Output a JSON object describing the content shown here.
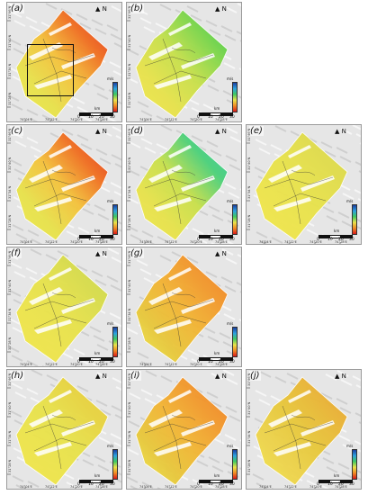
{
  "figure": {
    "panels": [
      {
        "id": "a",
        "label": "(a)",
        "colors": [
          "#e03020",
          "#f06b1e",
          "#f4c23a",
          "#e8e24a",
          "#f0e84a"
        ],
        "has_inset_box": true
      },
      {
        "id": "b",
        "label": "(b)",
        "colors": [
          "#2ec84a",
          "#7ad64a",
          "#c8e04a",
          "#e8e24a",
          "#f0e84a"
        ],
        "has_inset_box": false
      },
      {
        "id": "c",
        "label": "(c)",
        "colors": [
          "#e03020",
          "#f06b1e",
          "#f4c23a",
          "#e8e24a",
          "#f0e84a"
        ],
        "has_inset_box": false
      },
      {
        "id": "d",
        "label": "(d)",
        "colors": [
          "#2ec8a0",
          "#4ad07a",
          "#c8e04a",
          "#e8e24a",
          "#f0e84a"
        ],
        "has_inset_box": false
      },
      {
        "id": "e",
        "label": "(e)",
        "colors": [
          "#d8d84a",
          "#e0dc4a",
          "#e8e24a",
          "#eee44a",
          "#f0e84a"
        ],
        "has_inset_box": false
      },
      {
        "id": "f",
        "label": "(f)",
        "colors": [
          "#c8d84a",
          "#d8dc4a",
          "#e8e24a",
          "#eee44a",
          "#f0e84a"
        ],
        "has_inset_box": false
      },
      {
        "id": "g",
        "label": "(g)",
        "colors": [
          "#f07a24",
          "#f2962a",
          "#f2b432",
          "#e8c83a",
          "#f0e84a"
        ],
        "has_inset_box": false
      },
      {
        "id": "h",
        "label": "(h)",
        "colors": [
          "#e8c83a",
          "#e8d43e",
          "#e8e24a",
          "#eee44a",
          "#f0e84a"
        ],
        "has_inset_box": false
      },
      {
        "id": "i",
        "label": "(i)",
        "colors": [
          "#f07a24",
          "#f2962a",
          "#f2b432",
          "#e8c83a",
          "#f0e84a"
        ],
        "has_inset_box": false
      },
      {
        "id": "j",
        "label": "(j)",
        "colors": [
          "#e8a030",
          "#eab434",
          "#e8c83a",
          "#eed44a",
          "#f0e84a"
        ],
        "has_inset_box": false
      }
    ],
    "north_symbol": "N",
    "scale_labels": [
      "0",
      "10",
      "20",
      "30"
    ],
    "scale_unit": "km",
    "colorbar_unit": "m/s",
    "lat_ticks": [
      "31°46'N",
      "31°40'N",
      "31°34'N",
      "31°28'N"
    ],
    "lon_ticks": [
      "74°04'E",
      "74°12'E",
      "74°20'E",
      "74°28'E"
    ],
    "colorbar_gradient": [
      "#1a3fa0",
      "#2ea0e0",
      "#40c860",
      "#e8e24a",
      "#f08a24",
      "#d81a1a"
    ]
  }
}
